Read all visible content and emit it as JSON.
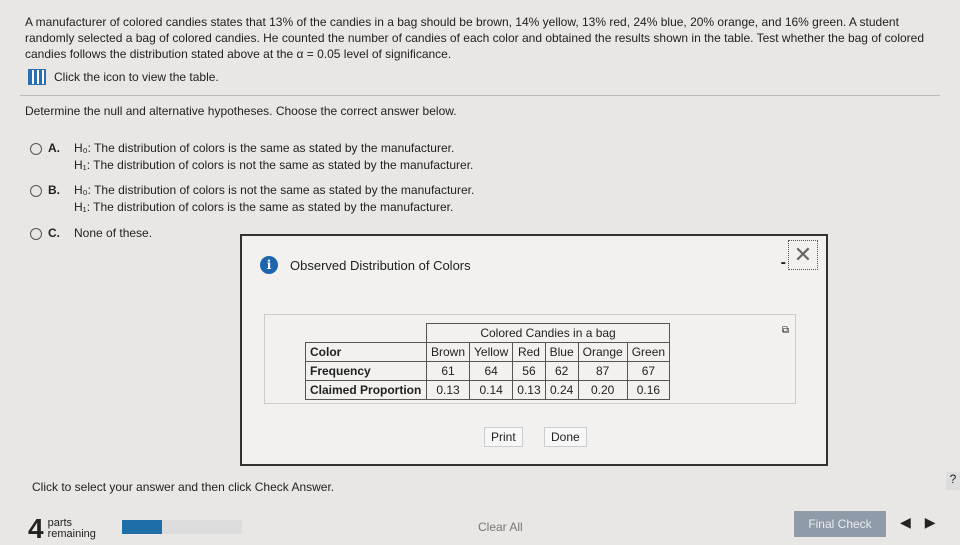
{
  "question": "A manufacturer of colored candies states that 13% of the candies in a bag should be brown, 14% yellow, 13% red, 24% blue, 20% orange, and 16% green. A student randomly selected a bag of colored candies. He counted the number of candies of each color and obtained the results shown in the table. Test whether the bag of colored candies follows the distribution stated above at the α = 0.05 level of significance.",
  "table_link": "Click the icon to view the table.",
  "instruction": "Determine the null and alternative hypotheses. Choose the correct answer below.",
  "options": [
    {
      "letter": "A.",
      "h0": "H₀: The distribution of colors is the same as stated by the manufacturer.",
      "h1": "H₁: The distribution of colors is not the same as stated by the manufacturer."
    },
    {
      "letter": "B.",
      "h0": "H₀: The distribution of colors is not the same as stated by the manufacturer.",
      "h1": "H₁: The distribution of colors is the same as stated by the manufacturer."
    },
    {
      "letter": "C.",
      "h0": "None of these."
    }
  ],
  "dialog": {
    "title": "Observed Distribution of Colors",
    "minimize": "-",
    "close": "✕",
    "print": "Print",
    "done": "Done",
    "table": {
      "caption": "Colored Candies in a bag",
      "row_labels": [
        "Color",
        "Frequency",
        "Claimed Proportion"
      ],
      "colors": [
        "Brown",
        "Yellow",
        "Red",
        "Blue",
        "Orange",
        "Green"
      ],
      "frequency": [
        "61",
        "64",
        "56",
        "62",
        "87",
        "67"
      ],
      "proportion": [
        "0.13",
        "0.14",
        "0.13",
        "0.24",
        "0.20",
        "0.16"
      ]
    }
  },
  "footer": {
    "hint": "Click to select your answer and then click Check Answer.",
    "parts_count": "4",
    "parts_label1": "parts",
    "parts_label2": "remaining",
    "progress_percent": 33,
    "clear_all": "Clear All",
    "final_check": "Final Check",
    "help": "?",
    "prev": "◀",
    "next": "▶"
  }
}
